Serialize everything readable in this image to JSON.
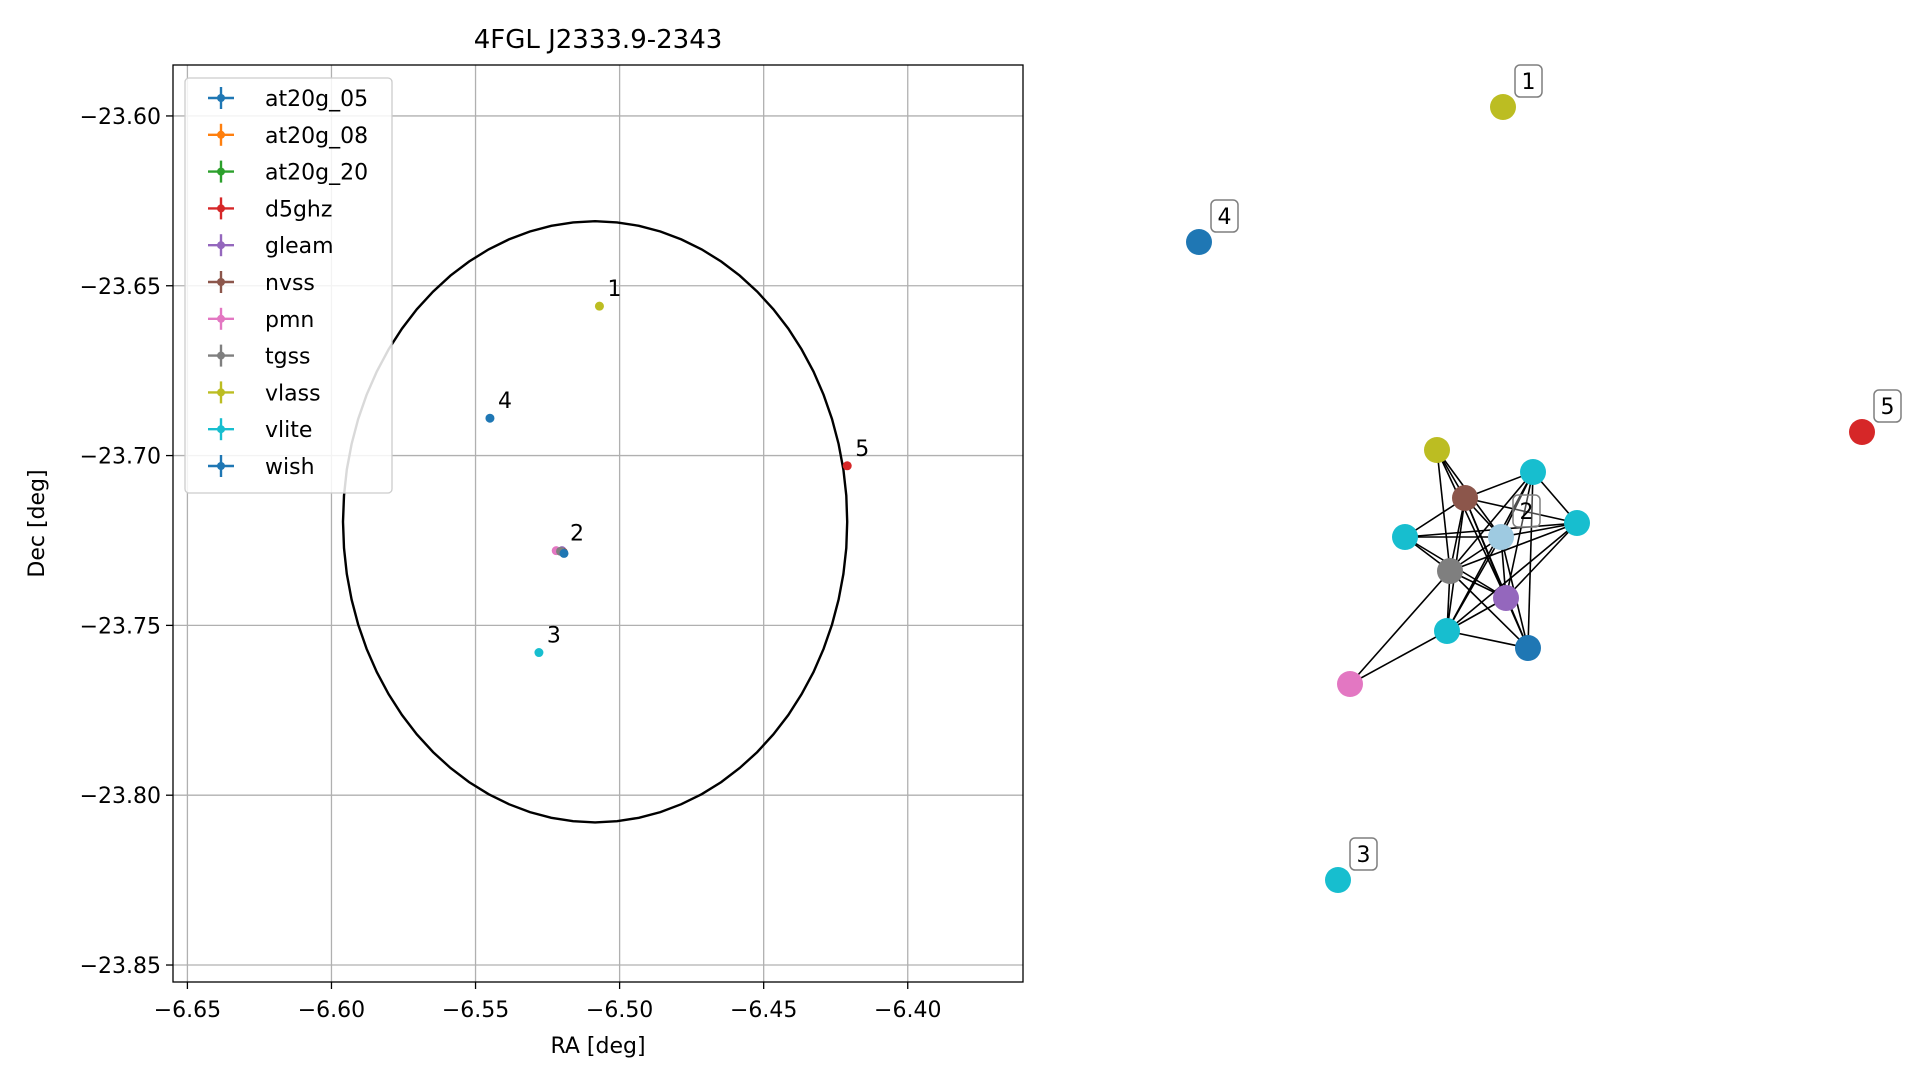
{
  "chart_data": [
    {
      "type": "scatter",
      "title": "4FGL J2333.9-2343",
      "xlabel": "RA [deg]",
      "ylabel": "Dec [deg]",
      "xlim": [
        -6.655,
        -6.36
      ],
      "ylim": [
        -23.855,
        -23.585
      ],
      "xticks": [
        -6.65,
        -6.6,
        -6.55,
        -6.5,
        -6.45,
        -6.4
      ],
      "xtick_labels": [
        "−6.65",
        "−6.60",
        "−6.55",
        "−6.50",
        "−6.45",
        "−6.40"
      ],
      "yticks": [
        -23.6,
        -23.65,
        -23.7,
        -23.75,
        -23.8,
        -23.85
      ],
      "ytick_labels": [
        "−23.60",
        "−23.65",
        "−23.70",
        "−23.75",
        "−23.80",
        "−23.85"
      ],
      "grid": true,
      "legend_position": "upper-left",
      "legend": [
        {
          "name": "at20g_05",
          "color": "#1f77b4"
        },
        {
          "name": "at20g_08",
          "color": "#ff7f0e"
        },
        {
          "name": "at20g_20",
          "color": "#2ca02c"
        },
        {
          "name": "d5ghz",
          "color": "#d62728"
        },
        {
          "name": "gleam",
          "color": "#9467bd"
        },
        {
          "name": "nvss",
          "color": "#8c564b"
        },
        {
          "name": "pmn",
          "color": "#e377c2"
        },
        {
          "name": "tgss",
          "color": "#7f7f7f"
        },
        {
          "name": "vlass",
          "color": "#bcbd22"
        },
        {
          "name": "vlite",
          "color": "#17becf"
        },
        {
          "name": "wish",
          "color": "#1f77b4"
        }
      ],
      "ellipse": {
        "center": [
          -6.5085,
          -23.7195
        ],
        "half_width_ra": 0.0875,
        "half_height_dec": 0.0885,
        "color": "#000000"
      },
      "points": [
        {
          "catalog": "vlass",
          "x": -6.507,
          "y": -23.656,
          "color": "#bcbd22"
        },
        {
          "catalog": "wish",
          "x": -6.545,
          "y": -23.689,
          "color": "#1f77b4"
        },
        {
          "catalog": "d5ghz",
          "x": -6.421,
          "y": -23.703,
          "color": "#d62728"
        },
        {
          "catalog": "pmn",
          "x": -6.522,
          "y": -23.728,
          "color": "#e377c2"
        },
        {
          "catalog": "gleam",
          "x": -6.52,
          "y": -23.728,
          "color": "#9467bd"
        },
        {
          "catalog": "nvss",
          "x": -6.5195,
          "y": -23.7285,
          "color": "#8c564b"
        },
        {
          "catalog": "tgss",
          "x": -6.5205,
          "y": -23.7282,
          "color": "#7f7f7f"
        },
        {
          "catalog": "at20g_05",
          "x": -6.5193,
          "y": -23.7288,
          "color": "#1f77b4"
        },
        {
          "catalog": "vlite",
          "x": -6.528,
          "y": -23.758,
          "color": "#17becf"
        }
      ],
      "annotations": [
        {
          "text": "1",
          "x": -6.507,
          "y": -23.656
        },
        {
          "text": "4",
          "x": -6.545,
          "y": -23.689
        },
        {
          "text": "5",
          "x": -6.421,
          "y": -23.703
        },
        {
          "text": "2",
          "x": -6.52,
          "y": -23.728
        },
        {
          "text": "3",
          "x": -6.528,
          "y": -23.758
        }
      ]
    },
    {
      "type": "network",
      "node_labels": [
        {
          "text": "1",
          "node": 0
        },
        {
          "text": "4",
          "node": 1
        },
        {
          "text": "5",
          "node": 2
        },
        {
          "text": "2",
          "node": 3
        },
        {
          "text": "3",
          "node": 4
        }
      ],
      "nodes": [
        {
          "id": 0,
          "color": "#bcbd22"
        },
        {
          "id": 1,
          "color": "#1f77b4"
        },
        {
          "id": 2,
          "color": "#d62728"
        },
        {
          "id": 3,
          "color": "#9ecae1"
        },
        {
          "id": 4,
          "color": "#17becf"
        },
        {
          "id": 5,
          "color": "#bcbd22"
        },
        {
          "id": 6,
          "color": "#17becf"
        },
        {
          "id": 7,
          "color": "#8c564b"
        },
        {
          "id": 8,
          "color": "#17becf"
        },
        {
          "id": 9,
          "color": "#17becf"
        },
        {
          "id": 10,
          "color": "#7f7f7f"
        },
        {
          "id": 11,
          "color": "#9467bd"
        },
        {
          "id": 12,
          "color": "#17becf"
        },
        {
          "id": 13,
          "color": "#1f77b4"
        },
        {
          "id": 14,
          "color": "#e377c2"
        }
      ],
      "edges": [
        [
          5,
          7
        ],
        [
          5,
          10
        ],
        [
          5,
          11
        ],
        [
          5,
          3
        ],
        [
          6,
          7
        ],
        [
          6,
          10
        ],
        [
          6,
          9
        ],
        [
          6,
          3
        ],
        [
          6,
          11
        ],
        [
          6,
          12
        ],
        [
          6,
          13
        ],
        [
          7,
          8
        ],
        [
          7,
          9
        ],
        [
          7,
          10
        ],
        [
          7,
          11
        ],
        [
          7,
          12
        ],
        [
          7,
          13
        ],
        [
          7,
          3
        ],
        [
          8,
          10
        ],
        [
          8,
          3
        ],
        [
          8,
          9
        ],
        [
          8,
          11
        ],
        [
          9,
          10
        ],
        [
          9,
          3
        ],
        [
          9,
          11
        ],
        [
          9,
          12
        ],
        [
          10,
          11
        ],
        [
          10,
          12
        ],
        [
          10,
          13
        ],
        [
          10,
          14
        ],
        [
          10,
          3
        ],
        [
          11,
          12
        ],
        [
          11,
          13
        ],
        [
          11,
          3
        ],
        [
          12,
          13
        ],
        [
          12,
          14
        ],
        [
          12,
          3
        ],
        [
          3,
          13
        ]
      ]
    }
  ]
}
